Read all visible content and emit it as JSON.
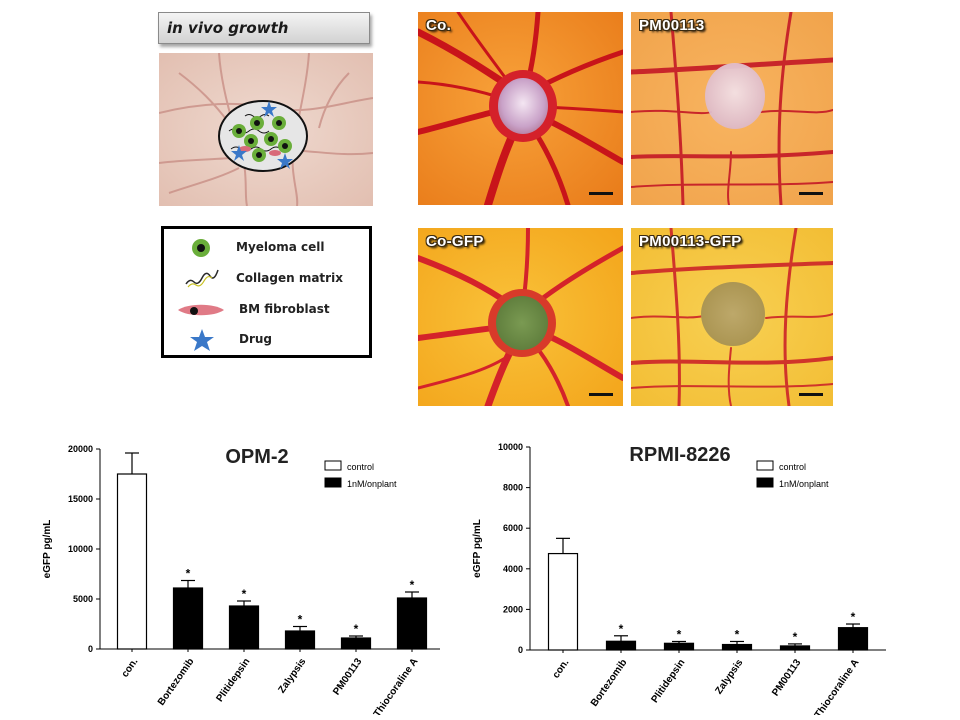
{
  "schematic": {
    "title": "in vivo growth"
  },
  "photos": [
    {
      "label": "Co."
    },
    {
      "label": "PM00113"
    },
    {
      "label": "Co-GFP"
    },
    {
      "label": "PM00113-GFP"
    }
  ],
  "legend": {
    "items": [
      {
        "label": "Myeloma cell",
        "icon": "myeloma-cell-icon"
      },
      {
        "label": "Collagen matrix",
        "icon": "collagen-matrix-icon"
      },
      {
        "label": "BM fibroblast",
        "icon": "bm-fibroblast-icon"
      },
      {
        "label": "Drug",
        "icon": "drug-star-icon"
      }
    ]
  },
  "colors": {
    "control_fill": "#ffffff",
    "drug_fill": "#000000",
    "drug_star": "#3a78c8",
    "myeloma": "#6aae3a"
  },
  "chart_data": [
    {
      "type": "bar",
      "title": "OPM-2",
      "ylabel": "eGFP pg/mL",
      "xlabel": "",
      "ylim": [
        0,
        20000
      ],
      "yticks": [
        "0",
        "5000",
        "10000",
        "15000",
        "20000"
      ],
      "yticks_values": [
        0,
        5000,
        10000,
        15000,
        20000
      ],
      "categories": [
        "con.",
        "Bortezomib",
        "Plitidepsin",
        "Zalypsis",
        "PM00113",
        "Thiocoraline A"
      ],
      "values": [
        17500,
        6100,
        4300,
        1800,
        1100,
        5100
      ],
      "errors": [
        2100,
        750,
        500,
        450,
        200,
        600
      ],
      "significance": [
        "",
        "*",
        "*",
        "*",
        "*",
        "*"
      ],
      "legend": [
        {
          "name": "control",
          "fill": "#ffffff"
        },
        {
          "name": "1nM/onplant",
          "fill": "#000000"
        }
      ]
    },
    {
      "type": "bar",
      "title": "RPMI-8226",
      "ylabel": "eGFP pg/mL",
      "xlabel": "",
      "ylim": [
        0,
        10000
      ],
      "yticks": [
        "0",
        "2000",
        "4000",
        "6000",
        "8000",
        "10000"
      ],
      "yticks_values": [
        0,
        2000,
        4000,
        6000,
        8000,
        10000
      ],
      "categories": [
        "con.",
        "Bortezomib",
        "Plitidepsin",
        "Zalypsis",
        "PM00113",
        "Thiocoraline A"
      ],
      "values": [
        4750,
        430,
        330,
        270,
        200,
        1100
      ],
      "errors": [
        750,
        270,
        90,
        150,
        100,
        180
      ],
      "significance": [
        "",
        "*",
        "*",
        "*",
        "*",
        "*"
      ],
      "legend": [
        {
          "name": "control",
          "fill": "#ffffff"
        },
        {
          "name": "1nM/onplant",
          "fill": "#000000"
        }
      ]
    }
  ]
}
